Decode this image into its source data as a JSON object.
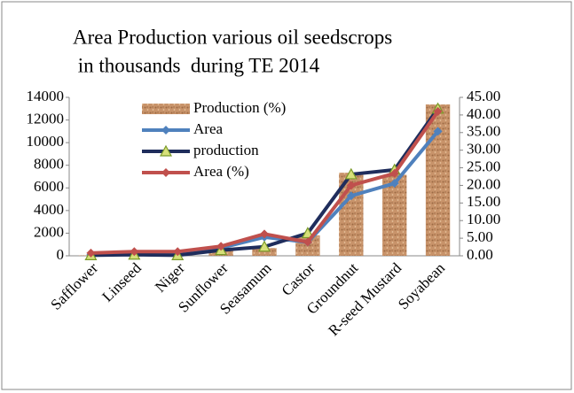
{
  "chart_data": {
    "type": "combo",
    "title_lines": [
      "Area  Production various oil seedscrops",
      " in thousands  during TE 2014"
    ],
    "categories": [
      "Safflower",
      "Linseed",
      "Niger",
      "Sunflower",
      "Seasamum",
      "Castor",
      "Groundnut",
      "R-seed Mustard",
      "Soyabean"
    ],
    "series": [
      {
        "name": "Production (%)",
        "type": "bar",
        "axis": "y2",
        "color": "#c8936a",
        "values": [
          0.1,
          0.2,
          0.1,
          1.5,
          2.2,
          5.8,
          23.6,
          23.0,
          43.0
        ]
      },
      {
        "name": "Area",
        "type": "line",
        "marker": "diamond",
        "color": "#4f81bd",
        "values": [
          100,
          200,
          200,
          700,
          1650,
          1200,
          5300,
          6400,
          11000
        ]
      },
      {
        "name": "production",
        "type": "line",
        "marker": "triangle",
        "color": "#1f2d5c",
        "values": [
          50,
          100,
          50,
          500,
          800,
          2000,
          7200,
          7600,
          13000
        ]
      },
      {
        "name": "Area (%)",
        "type": "line",
        "marker": "diamond",
        "axis": "y2",
        "color": "#c0504d",
        "values": [
          0.8,
          1.2,
          1.2,
          2.7,
          6.2,
          3.9,
          20.0,
          23.4,
          41.0
        ]
      }
    ],
    "ylim": [
      0,
      14000
    ],
    "yticks": [
      0,
      2000,
      4000,
      6000,
      8000,
      10000,
      12000,
      14000
    ],
    "y2lim": [
      0,
      45
    ],
    "y2ticks": [
      {
        "value": 0,
        "label": "0.00"
      },
      {
        "value": 5,
        "label": "5.00"
      },
      {
        "value": 10,
        "label": "10.00"
      },
      {
        "value": 15,
        "label": "15.00"
      },
      {
        "value": 20,
        "label": "20.00"
      },
      {
        "value": 25,
        "label": "25.00"
      },
      {
        "value": 30,
        "label": "30.00"
      },
      {
        "value": 35,
        "label": "35.00"
      },
      {
        "value": 40,
        "label": "40.00"
      },
      {
        "value": 45,
        "label": "45.00"
      }
    ],
    "legend": "upper left"
  }
}
